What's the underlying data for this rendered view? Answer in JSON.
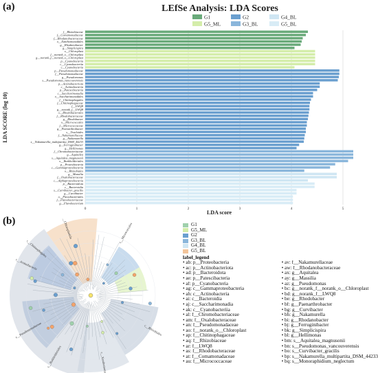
{
  "panels": {
    "a": "(a)",
    "b": "(b)"
  },
  "chart_data": [
    {
      "type": "bar",
      "orientation": "horizontal",
      "title": "LEfSe Analysis: LDA Scores",
      "xlabel": "LDA score",
      "ylabel": "LDA SCORE (log 10)",
      "xlim": [
        0,
        5.2
      ],
      "xticks": [
        "0",
        "1",
        "2",
        "3",
        "4",
        "5"
      ],
      "grid": true,
      "legend_position": "top",
      "series": [
        {
          "name": "G1",
          "color": "#6aaa7a"
        },
        {
          "name": "G2",
          "color": "#6a9fcf"
        },
        {
          "name": "G4_BL",
          "color": "#cfe6f3"
        },
        {
          "name": "G5_ML",
          "color": "#d4edaa"
        },
        {
          "name": "G3_BL",
          "color": "#8ab6db"
        },
        {
          "name": "G5_BL",
          "color": "#d8ecf6"
        }
      ],
      "bars": [
        {
          "label": "f__Rhizobiaceae",
          "group": "G1",
          "value": 4.32
        },
        {
          "label": "f__Comamonadaceae",
          "group": "G1",
          "value": 4.28
        },
        {
          "label": "f__Rhodanobacteraceae",
          "group": "G1",
          "value": 4.22
        },
        {
          "label": "o__Xanthomonadales",
          "group": "G1",
          "value": 4.2
        },
        {
          "label": "g__Rhodanobacter",
          "group": "G1",
          "value": 4.18
        },
        {
          "label": "g__Simplicispira",
          "group": "G1",
          "value": 4.06
        },
        {
          "label": "o__Chloroplast",
          "group": "G5_ML",
          "value": 4.46
        },
        {
          "label": "f__norank_o__Chloroplast",
          "group": "G5_ML",
          "value": 4.46
        },
        {
          "label": "g__norank_f__norank_o__Chloroplast",
          "group": "G5_ML",
          "value": 4.46
        },
        {
          "label": "p__Cyanobacteria",
          "group": "G5_ML",
          "value": 4.46
        },
        {
          "label": "c__Cyanobacteriia",
          "group": "G5_ML",
          "value": 4.46
        },
        {
          "label": "c__Cyanobacteria",
          "group": "G5_ML",
          "value": 4.06
        },
        {
          "label": "p__Pseudomonadaceae",
          "group": "G2",
          "value": 4.93
        },
        {
          "label": "f__Pseudomonadaceae",
          "group": "G2",
          "value": 4.93
        },
        {
          "label": "g__Pseudomonas",
          "group": "G2",
          "value": 4.92
        },
        {
          "label": "s__Pseudomonas_vancouverensis",
          "group": "G2",
          "value": 4.9
        },
        {
          "label": "p__Actinobacteriota",
          "group": "G2",
          "value": 4.55
        },
        {
          "label": "c__Actinobacteria",
          "group": "G2",
          "value": 4.55
        },
        {
          "label": "p__Patescibacteria",
          "group": "G2",
          "value": 4.5
        },
        {
          "label": "c__Saccharimonadia",
          "group": "G2",
          "value": 4.42
        },
        {
          "label": "o__Saccharimonadales",
          "group": "G2",
          "value": 4.42
        },
        {
          "label": "f__Chitinophagales",
          "group": "G2",
          "value": 4.38
        },
        {
          "label": "f__Chitinophagaceae",
          "group": "G2",
          "value": 4.36
        },
        {
          "label": "f__LWQ8",
          "group": "G2",
          "value": 4.35
        },
        {
          "label": "g__norank_f__LWQ8",
          "group": "G2",
          "value": 4.35
        },
        {
          "label": "o__Rhodobacterales",
          "group": "G2",
          "value": 4.34
        },
        {
          "label": "f__Rhodobacteraceae",
          "group": "G2",
          "value": 4.33
        },
        {
          "label": "g__Rhodobacter",
          "group": "G2",
          "value": 4.32
        },
        {
          "label": "o__Micrococcales",
          "group": "G2",
          "value": 4.3
        },
        {
          "label": "f__Micrococcaceae",
          "group": "G2",
          "value": 4.3
        },
        {
          "label": "g__Paenarthrobacter",
          "group": "G2",
          "value": 4.28
        },
        {
          "label": "s__Trueloides",
          "group": "G2",
          "value": 4.28
        },
        {
          "label": "f__Nakamurellaceae",
          "group": "G2",
          "value": 4.26
        },
        {
          "label": "g__Nakamurella",
          "group": "G2",
          "value": 4.25
        },
        {
          "label": "s__Nakamurella_multipartita_DSM_44233",
          "group": "G2",
          "value": 4.24
        },
        {
          "label": "g__Ferruginibacter",
          "group": "G2",
          "value": 4.15
        },
        {
          "label": "g__Hellimonas",
          "group": "G2",
          "value": 4.1
        },
        {
          "label": "f__Chromobacteriaceae",
          "group": "G3_BL",
          "value": 5.2
        },
        {
          "label": "g__Aquitalea",
          "group": "G3_BL",
          "value": 5.2
        },
        {
          "label": "s__Aquitalea_magnusonii",
          "group": "G3_BL",
          "value": 5.2
        },
        {
          "label": "o__Burkholderiales",
          "group": "G3_BL",
          "value": 5.1
        },
        {
          "label": "p__Proteobacteria",
          "group": "G3_BL",
          "value": 4.85
        },
        {
          "label": "c__Gammaproteobacteria",
          "group": "G3_BL",
          "value": 4.75
        },
        {
          "label": "o__Rhizobiales",
          "group": "G3_BL",
          "value": 4.25
        },
        {
          "label": "g__Massilia",
          "group": "G4_BL",
          "value": 4.88
        },
        {
          "label": "f__Oxalobacteraceae",
          "group": "G4_BL",
          "value": 4.88
        },
        {
          "label": "c__Alphaproteobacteria",
          "group": "G4_BL",
          "value": 4.32
        },
        {
          "label": "p__Bacteroidota",
          "group": "G5_BL",
          "value": 4.45
        },
        {
          "label": "c__Bacteroidia",
          "group": "G5_BL",
          "value": 4.45
        },
        {
          "label": "s__Curvibacter_gracilis",
          "group": "G5_BL",
          "value": 4.1
        },
        {
          "label": "g__Curvibacter",
          "group": "G5_BL",
          "value": 4.1
        },
        {
          "label": "o__Flavobacteriales",
          "group": "G5_BL",
          "value": 4.03
        },
        {
          "label": "f__Flavobacteriaceae",
          "group": "G5_BL",
          "value": 4.03
        },
        {
          "label": "g__Flavobacterium",
          "group": "G5_BL",
          "value": 4.03
        }
      ]
    },
    {
      "type": "cladogram",
      "legend_groups": [
        {
          "name": "G1",
          "color": "#9fd0ac"
        },
        {
          "name": "G5_ML",
          "color": "#d4edaa"
        },
        {
          "name": "G2",
          "color": "#6a9fcf"
        },
        {
          "name": "G3_BL",
          "color": "#8ab6db"
        },
        {
          "name": "G4_BL",
          "color": "#cfe6f3"
        },
        {
          "name": "G5_BL",
          "color": "#f3c49a"
        }
      ],
      "label_legend_title": "label_legend",
      "labels_left": [
        "ab: p__Proteobacteria",
        "ac: p__Actinobacteriota",
        "ad: p__Bacteroidota",
        "ae: p__Patescibacteria",
        "af: p__Cyanobacteria",
        "ag: c__Gammaproteobacteria",
        "ah: c__Actinobacteria",
        "ai: c__Bacteroidia",
        "aj: c__Saccharimonadia",
        "ak: c__Cyanobacteriia",
        "al: f__Chromobacteriaceae",
        "am: f__Oxalobacteraceae",
        "an: f__Pseudomonadaceae",
        "ao: f__norank_o__Chloroplast",
        "ap: f__Chitinophagaceae",
        "aq: f__Rhizobiaceae",
        "ar: f__LWQ8",
        "as: f__Rhodobacteraceae",
        "at: f__Comamonadaceae",
        "au: f__Micrococcaceae"
      ],
      "labels_right": [
        "av: f__Nakamurellaceae",
        "aw: f__Rhodanobacteraceae",
        "ax: g__Aquitalea",
        "ay: g__Massilia",
        "az: g__Pseudomonas",
        "bc: g__norank_f__norank_o__Chloroplast",
        "bd: g__norank_f__LWQ8",
        "be: g__Rhodobacter",
        "bf: g__Paenarthrobacter",
        "bg: g__Curvibacter",
        "bh: g__Nakamurella",
        "bi: g__Rhodanobacter",
        "bj: g__Ferruginibacter",
        "bk: g__Simplicispira",
        "bl: g__Hellimonas",
        "bm: s__Aquitalea_magnusonii",
        "bn: s__Pseudomonas_vancouverensis",
        "bo: s__Curvibacter_gracilis",
        "bp: s__Nakamurella_multipartita_DSM_44233",
        "bq: s__Monoraphidium_neglectum"
      ],
      "clade_labels": [
        "c__Chloroplastida",
        "c__Pseudomonadaceae",
        "c__Actinobacteria",
        "c__Burkholderiales",
        "c__Rhizobiales",
        "c__Micrococcales",
        "c__Xanthomonadales",
        "c__Chitinophagales"
      ]
    }
  ]
}
